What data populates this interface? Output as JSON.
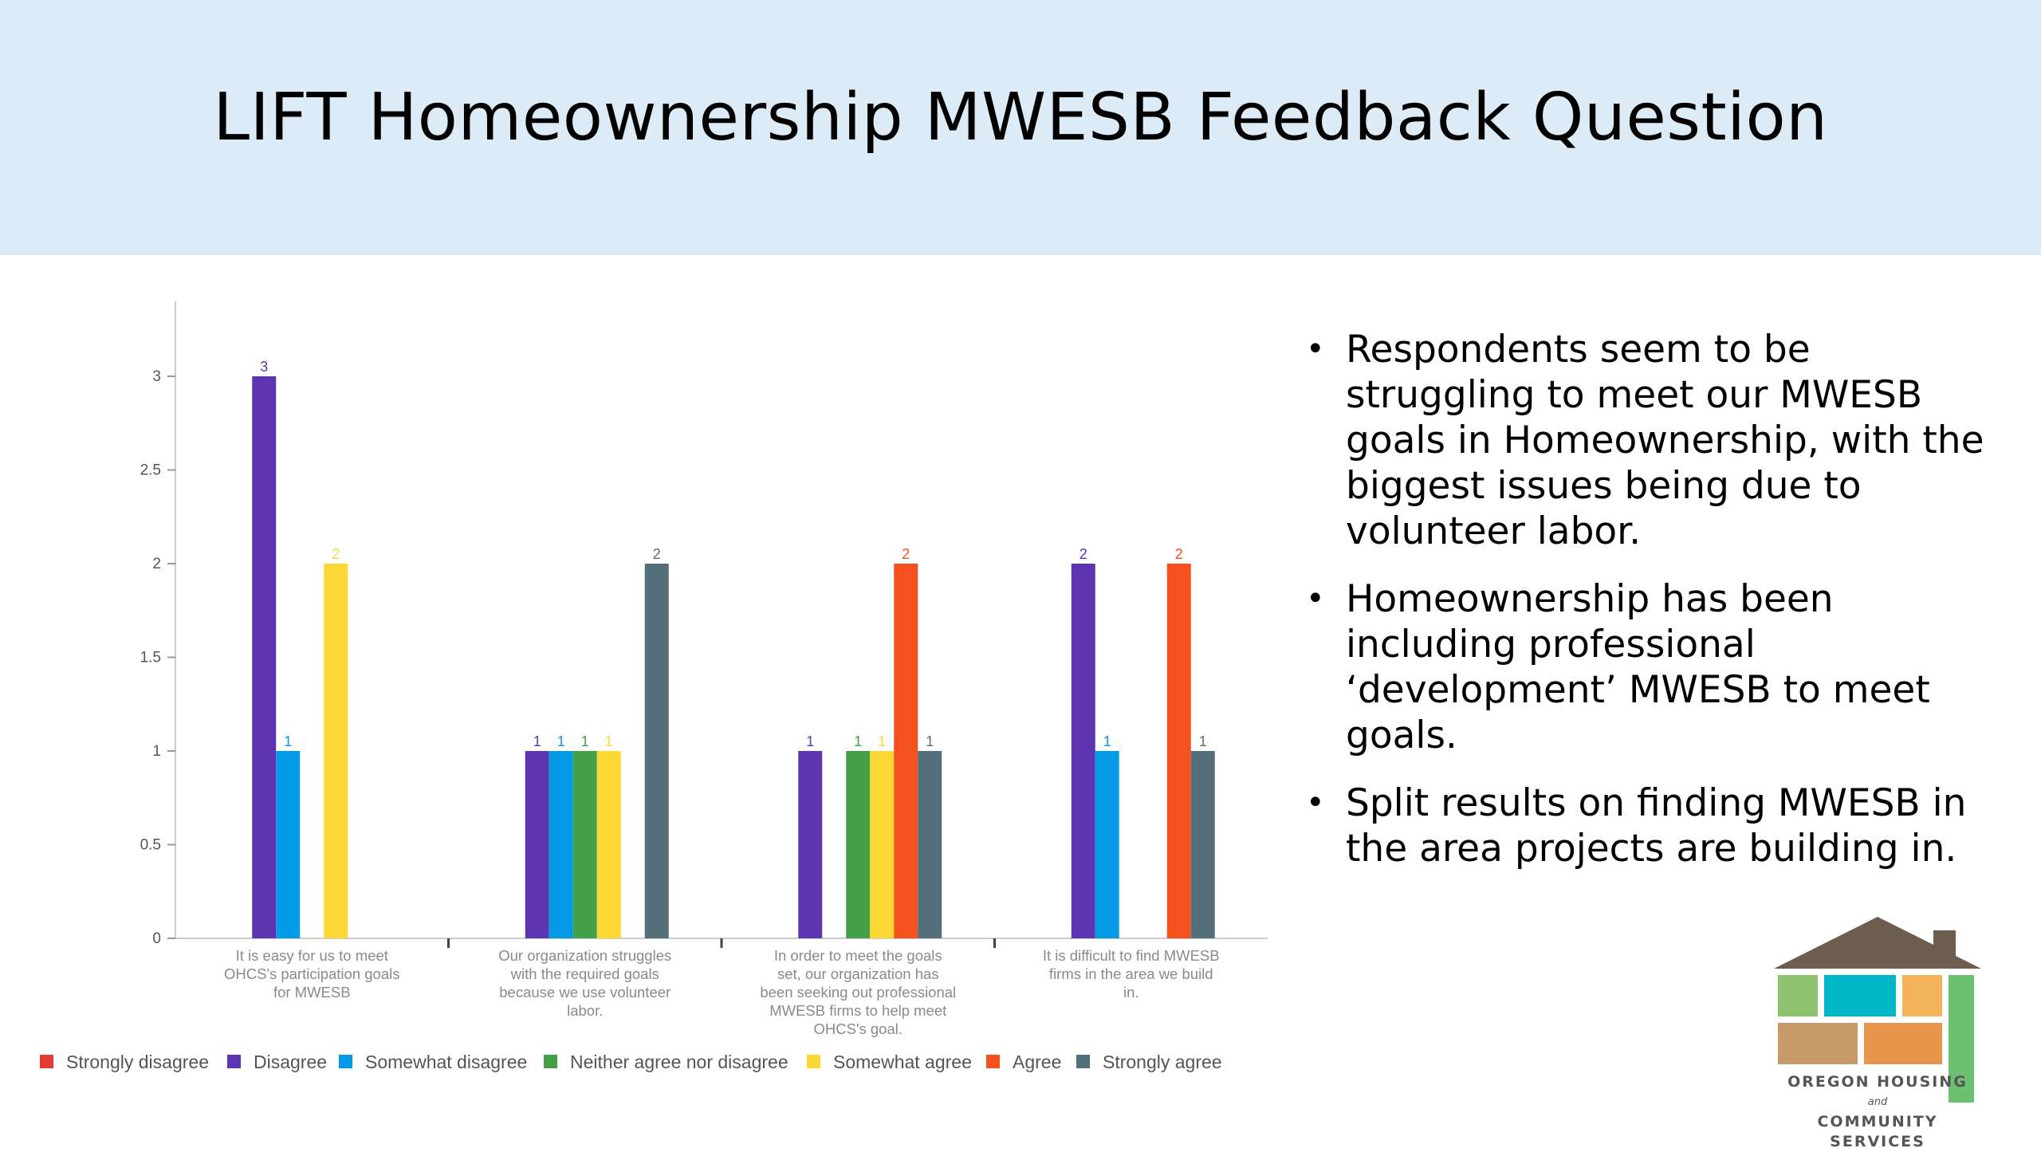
{
  "slide": {
    "title": "LIFT Homeownership MWESB Feedback Question"
  },
  "bullets": [
    "Respondents seem to be struggling to meet our MWESB goals in Homeownership, with the biggest issues being due to volunteer labor.",
    "Homeownership has been including professional ‘development’ MWESB to meet goals.",
    "Split results on finding MWESB in the area projects are building in."
  ],
  "logo": {
    "line1": "OREGON HOUSING",
    "and": "and",
    "line2": "COMMUNITY SERVICES"
  },
  "chart_data": {
    "type": "bar",
    "categories": [
      [
        "It is easy for us to meet",
        "OHCS's participation goals",
        "for MWESB"
      ],
      [
        "Our organization struggles",
        "with the required goals",
        "because we use volunteer",
        "labor."
      ],
      [
        "In order to meet the goals",
        "set, our organization has",
        "been seeking out professional",
        "MWESB firms to help meet",
        "OHCS's goal."
      ],
      [
        "It is difficult to find MWESB",
        "firms in the area we build",
        "in."
      ]
    ],
    "series": [
      {
        "name": "Strongly disagree",
        "color": "#e53935",
        "values": [
          0,
          0,
          0,
          0
        ]
      },
      {
        "name": "Disagree",
        "color": "#5e35b1",
        "values": [
          3,
          1,
          1,
          2
        ]
      },
      {
        "name": "Somewhat disagree",
        "color": "#039be5",
        "values": [
          1,
          1,
          0,
          1
        ]
      },
      {
        "name": "Neither agree nor disagree",
        "color": "#43a047",
        "values": [
          0,
          1,
          1,
          0
        ]
      },
      {
        "name": "Somewhat agree",
        "color": "#fdd835",
        "values": [
          2,
          1,
          1,
          0
        ]
      },
      {
        "name": "Agree",
        "color": "#f4511e",
        "values": [
          0,
          0,
          2,
          2
        ]
      },
      {
        "name": "Strongly agree",
        "color": "#546e7a",
        "values": [
          0,
          2,
          1,
          1
        ]
      }
    ],
    "yticks": [
      "0",
      "0.5",
      "1",
      "1.5",
      "2",
      "2.5",
      "3"
    ],
    "ylim": [
      0,
      3.2
    ],
    "legend_position": "bottom",
    "grid": false
  }
}
